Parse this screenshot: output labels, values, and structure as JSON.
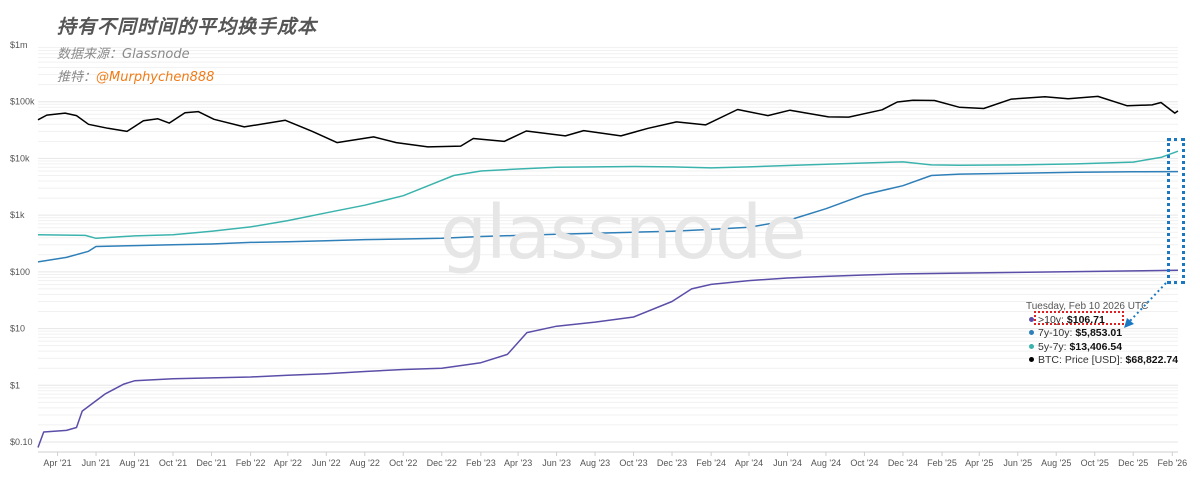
{
  "header": {
    "title": "持有不同时间的平均换手成本",
    "source": "数据来源：Glassnode",
    "twitter_label": "推特：",
    "twitter_handle": "@Murphychen888"
  },
  "watermark": "glassnode",
  "tooltip": {
    "date": "Tuesday, Feb 10 2026 UTC",
    "rows": [
      {
        "label": ">10y:",
        "value": "$106.71",
        "color": "#5b4ea8"
      },
      {
        "label": "7y-10y:",
        "value": "$5,853.01",
        "color": "#2f7fb8"
      },
      {
        "label": "5y-7y:",
        "value": "$13,406.54",
        "color": "#3bb3ad"
      },
      {
        "label": "BTC: Price [USD]:",
        "value": "$68,822.74",
        "color": "#000000"
      }
    ]
  },
  "chart_data": {
    "type": "line",
    "title": "持有不同时间的平均换手成本",
    "y_scale": "log",
    "ylim": [
      0.1,
      1000000
    ],
    "xlim": [
      "2021-03-01",
      "2026-02-10"
    ],
    "y_ticks": [
      {
        "value": 0.1,
        "label": "$0.10"
      },
      {
        "value": 1,
        "label": "$1"
      },
      {
        "value": 10,
        "label": "$10"
      },
      {
        "value": 100,
        "label": "$100"
      },
      {
        "value": 1000,
        "label": "$1k"
      },
      {
        "value": 10000,
        "label": "$10k"
      },
      {
        "value": 100000,
        "label": "$100k"
      },
      {
        "value": 1000000,
        "label": "$1m"
      }
    ],
    "x_ticks": [
      {
        "date": "2021-04-01",
        "label": "Apr '21"
      },
      {
        "date": "2021-06-01",
        "label": "Jun '21"
      },
      {
        "date": "2021-08-01",
        "label": "Aug '21"
      },
      {
        "date": "2021-10-01",
        "label": "Oct '21"
      },
      {
        "date": "2021-12-01",
        "label": "Dec '21"
      },
      {
        "date": "2022-02-01",
        "label": "Feb '22"
      },
      {
        "date": "2022-04-01",
        "label": "Apr '22"
      },
      {
        "date": "2022-06-01",
        "label": "Jun '22"
      },
      {
        "date": "2022-08-01",
        "label": "Aug '22"
      },
      {
        "date": "2022-10-01",
        "label": "Oct '22"
      },
      {
        "date": "2022-12-01",
        "label": "Dec '22"
      },
      {
        "date": "2023-02-01",
        "label": "Feb '23"
      },
      {
        "date": "2023-04-01",
        "label": "Apr '23"
      },
      {
        "date": "2023-06-01",
        "label": "Jun '23"
      },
      {
        "date": "2023-08-01",
        "label": "Aug '23"
      },
      {
        "date": "2023-10-01",
        "label": "Oct '23"
      },
      {
        "date": "2023-12-01",
        "label": "Dec '23"
      },
      {
        "date": "2024-02-01",
        "label": "Feb '24"
      },
      {
        "date": "2024-04-01",
        "label": "Apr '24"
      },
      {
        "date": "2024-06-01",
        "label": "Jun '24"
      },
      {
        "date": "2024-08-01",
        "label": "Aug '24"
      },
      {
        "date": "2024-10-01",
        "label": "Oct '24"
      },
      {
        "date": "2024-12-01",
        "label": "Dec '24"
      },
      {
        "date": "2025-02-01",
        "label": "Feb '25"
      },
      {
        "date": "2025-04-01",
        "label": "Apr '25"
      },
      {
        "date": "2025-06-01",
        "label": "Jun '25"
      },
      {
        "date": "2025-08-01",
        "label": "Aug '25"
      },
      {
        "date": "2025-10-01",
        "label": "Oct '25"
      },
      {
        "date": "2025-12-01",
        "label": "Dec '25"
      },
      {
        "date": "2026-02-01",
        "label": "Feb '26"
      }
    ],
    "series": [
      {
        "name": "BTC: Price [USD]",
        "color": "#000000",
        "points": [
          [
            "2021-03-01",
            48000
          ],
          [
            "2021-03-15",
            58000
          ],
          [
            "2021-04-13",
            63000
          ],
          [
            "2021-05-01",
            57000
          ],
          [
            "2021-05-20",
            40000
          ],
          [
            "2021-06-20",
            34000
          ],
          [
            "2021-07-20",
            30000
          ],
          [
            "2021-08-15",
            46000
          ],
          [
            "2021-09-07",
            50000
          ],
          [
            "2021-09-25",
            42000
          ],
          [
            "2021-10-20",
            64000
          ],
          [
            "2021-11-10",
            67000
          ],
          [
            "2021-12-05",
            49000
          ],
          [
            "2022-01-22",
            36000
          ],
          [
            "2022-03-28",
            47000
          ],
          [
            "2022-05-10",
            30000
          ],
          [
            "2022-06-18",
            19000
          ],
          [
            "2022-08-15",
            24000
          ],
          [
            "2022-09-20",
            19000
          ],
          [
            "2022-11-09",
            16000
          ],
          [
            "2022-12-31",
            16500
          ],
          [
            "2023-01-20",
            22500
          ],
          [
            "2023-03-10",
            20000
          ],
          [
            "2023-04-14",
            30500
          ],
          [
            "2023-06-15",
            25000
          ],
          [
            "2023-07-14",
            31000
          ],
          [
            "2023-09-11",
            25000
          ],
          [
            "2023-10-24",
            34000
          ],
          [
            "2023-12-08",
            44000
          ],
          [
            "2024-01-23",
            39000
          ],
          [
            "2024-03-14",
            73000
          ],
          [
            "2024-05-01",
            57000
          ],
          [
            "2024-06-05",
            71000
          ],
          [
            "2024-08-05",
            54000
          ],
          [
            "2024-09-06",
            53500
          ],
          [
            "2024-10-29",
            72000
          ],
          [
            "2024-11-22",
            99000
          ],
          [
            "2024-12-17",
            106000
          ],
          [
            "2025-01-20",
            105000
          ],
          [
            "2025-02-28",
            80000
          ],
          [
            "2025-04-08",
            76000
          ],
          [
            "2025-05-22",
            111000
          ],
          [
            "2025-07-14",
            122000
          ],
          [
            "2025-08-20",
            113000
          ],
          [
            "2025-10-06",
            124000
          ],
          [
            "2025-11-21",
            85000
          ],
          [
            "2025-12-31",
            88000
          ],
          [
            "2026-01-14",
            97000
          ],
          [
            "2026-02-05",
            63000
          ],
          [
            "2026-02-10",
            68822.74
          ]
        ]
      },
      {
        "name": "5y-7y",
        "color": "#3bb3ad",
        "points": [
          [
            "2021-03-01",
            450
          ],
          [
            "2021-05-15",
            440
          ],
          [
            "2021-06-01",
            390
          ],
          [
            "2021-08-01",
            430
          ],
          [
            "2021-10-01",
            450
          ],
          [
            "2021-12-01",
            520
          ],
          [
            "2022-02-01",
            620
          ],
          [
            "2022-04-01",
            800
          ],
          [
            "2022-06-01",
            1100
          ],
          [
            "2022-08-01",
            1500
          ],
          [
            "2022-10-01",
            2200
          ],
          [
            "2022-11-15",
            3500
          ],
          [
            "2022-12-20",
            5000
          ],
          [
            "2023-02-01",
            6000
          ],
          [
            "2023-04-01",
            6500
          ],
          [
            "2023-06-01",
            7000
          ],
          [
            "2023-08-01",
            7100
          ],
          [
            "2023-10-01",
            7200
          ],
          [
            "2023-12-01",
            7100
          ],
          [
            "2024-02-01",
            6800
          ],
          [
            "2024-04-01",
            7100
          ],
          [
            "2024-06-01",
            7500
          ],
          [
            "2024-08-01",
            7900
          ],
          [
            "2024-10-01",
            8300
          ],
          [
            "2024-12-01",
            8700
          ],
          [
            "2025-01-15",
            7700
          ],
          [
            "2025-03-01",
            7600
          ],
          [
            "2025-06-01",
            7700
          ],
          [
            "2025-09-01",
            8000
          ],
          [
            "2025-12-01",
            8600
          ],
          [
            "2026-01-15",
            10500
          ],
          [
            "2026-02-10",
            13406.54
          ]
        ]
      },
      {
        "name": "7y-10y",
        "color": "#2f7fb8",
        "points": [
          [
            "2021-03-01",
            150
          ],
          [
            "2021-04-15",
            180
          ],
          [
            "2021-05-20",
            230
          ],
          [
            "2021-06-01",
            280
          ],
          [
            "2021-08-01",
            290
          ],
          [
            "2021-10-01",
            300
          ],
          [
            "2021-12-01",
            310
          ],
          [
            "2022-02-01",
            330
          ],
          [
            "2022-04-01",
            340
          ],
          [
            "2022-06-01",
            355
          ],
          [
            "2022-08-01",
            370
          ],
          [
            "2022-10-01",
            380
          ],
          [
            "2022-12-01",
            390
          ],
          [
            "2023-02-01",
            420
          ],
          [
            "2023-04-01",
            440
          ],
          [
            "2023-06-01",
            460
          ],
          [
            "2023-08-01",
            480
          ],
          [
            "2023-10-01",
            500
          ],
          [
            "2023-12-01",
            520
          ],
          [
            "2024-02-01",
            560
          ],
          [
            "2024-04-01",
            610
          ],
          [
            "2024-06-01",
            800
          ],
          [
            "2024-08-01",
            1300
          ],
          [
            "2024-10-01",
            2300
          ],
          [
            "2024-12-01",
            3300
          ],
          [
            "2025-01-15",
            5000
          ],
          [
            "2025-03-01",
            5300
          ],
          [
            "2025-06-01",
            5500
          ],
          [
            "2025-09-01",
            5700
          ],
          [
            "2025-12-01",
            5800
          ],
          [
            "2026-02-10",
            5853.01
          ]
        ]
      },
      {
        "name": ">10y",
        "color": "#5b4ea8",
        "points": [
          [
            "2021-03-01",
            0.08
          ],
          [
            "2021-03-10",
            0.15
          ],
          [
            "2021-04-15",
            0.16
          ],
          [
            "2021-05-01",
            0.18
          ],
          [
            "2021-05-10",
            0.35
          ],
          [
            "2021-06-15",
            0.7
          ],
          [
            "2021-07-15",
            1.05
          ],
          [
            "2021-08-01",
            1.2
          ],
          [
            "2021-10-01",
            1.3
          ],
          [
            "2021-12-01",
            1.35
          ],
          [
            "2022-02-01",
            1.4
          ],
          [
            "2022-04-01",
            1.5
          ],
          [
            "2022-06-01",
            1.6
          ],
          [
            "2022-08-01",
            1.75
          ],
          [
            "2022-10-01",
            1.9
          ],
          [
            "2022-12-01",
            2.0
          ],
          [
            "2023-02-01",
            2.5
          ],
          [
            "2023-03-15",
            3.5
          ],
          [
            "2023-04-15",
            8.5
          ],
          [
            "2023-06-01",
            11
          ],
          [
            "2023-08-01",
            13
          ],
          [
            "2023-10-01",
            16
          ],
          [
            "2023-12-01",
            30
          ],
          [
            "2024-01-01",
            50
          ],
          [
            "2024-02-01",
            60
          ],
          [
            "2024-04-01",
            70
          ],
          [
            "2024-06-01",
            78
          ],
          [
            "2024-08-01",
            83
          ],
          [
            "2024-10-01",
            88
          ],
          [
            "2024-12-01",
            92
          ],
          [
            "2025-03-01",
            95
          ],
          [
            "2025-06-01",
            98
          ],
          [
            "2025-09-01",
            101
          ],
          [
            "2025-12-01",
            104
          ],
          [
            "2026-02-10",
            106.71
          ]
        ]
      }
    ]
  }
}
